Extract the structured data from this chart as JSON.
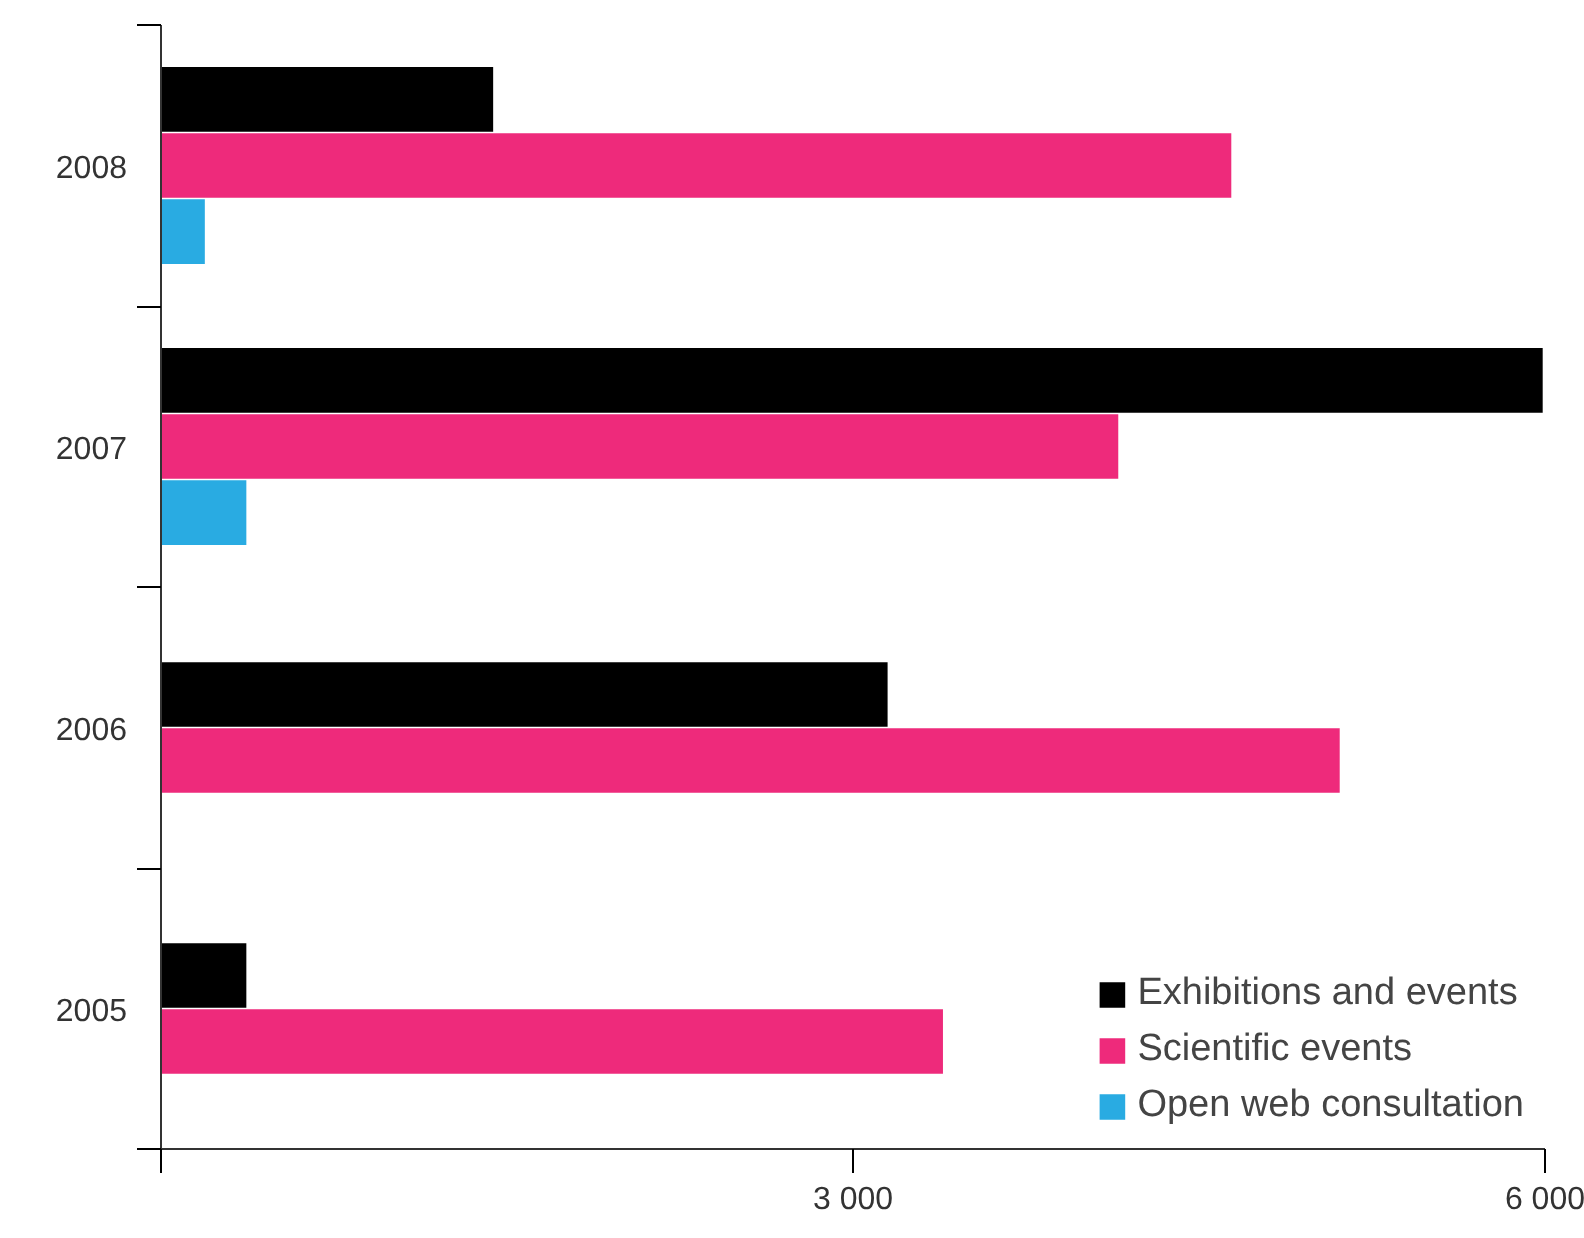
{
  "chart_data": {
    "type": "bar",
    "orientation": "horizontal",
    "categories": [
      "2008",
      "2007",
      "2006",
      "2005"
    ],
    "series": [
      {
        "name": "Exhibitions and events",
        "color": "#000000",
        "values": [
          1440,
          5990,
          3150,
          370
        ]
      },
      {
        "name": "Scientific events",
        "color": "#ee2a7b",
        "values": [
          4640,
          4150,
          5110,
          3390
        ]
      },
      {
        "name": "Open web consultation",
        "color": "#29abe2",
        "values": [
          190,
          370,
          null,
          null
        ]
      }
    ],
    "xlim": [
      0,
      6000
    ],
    "xticks": [
      {
        "value": 0,
        "label": null
      },
      {
        "value": 3000,
        "label": "3 000"
      },
      {
        "value": 6000,
        "label": "6 000"
      }
    ],
    "grid": false,
    "legend": "bottom right"
  }
}
